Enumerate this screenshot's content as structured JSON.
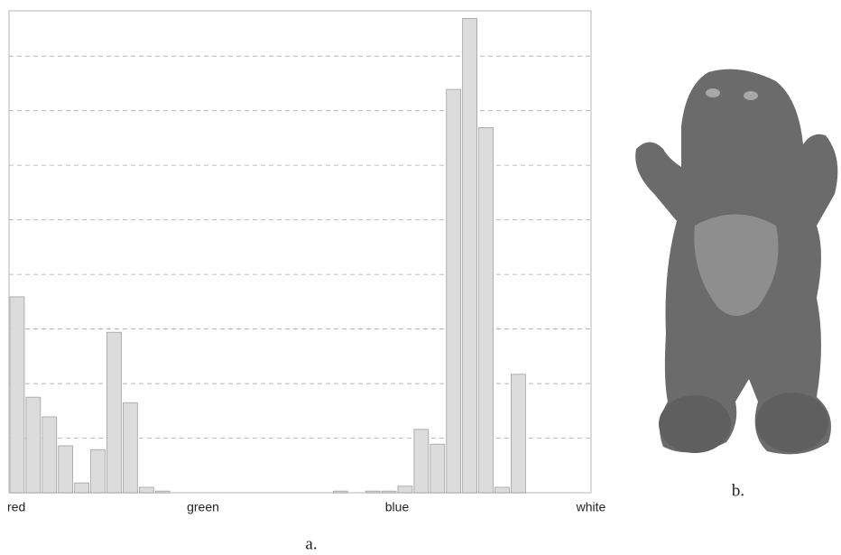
{
  "chart_data": {
    "type": "histogram",
    "bins": [
      0,
      1,
      2,
      3,
      4,
      5,
      6,
      7,
      8,
      9,
      10,
      11,
      12,
      13,
      14,
      15,
      16,
      17,
      18,
      19,
      20,
      21,
      22,
      23,
      24,
      25,
      26,
      27,
      28,
      29,
      30,
      31,
      32,
      33,
      34,
      35,
      36
    ],
    "values": [
      3.59,
      1.75,
      1.39,
      0.86,
      0.18,
      0.79,
      2.94,
      1.65,
      0.1,
      0.03,
      0,
      0,
      0,
      0,
      0,
      0,
      0,
      0,
      0,
      0,
      0.03,
      0,
      0.03,
      0.03,
      0.12,
      1.16,
      0.89,
      7.39,
      8.69,
      6.69,
      0.1,
      2.17,
      0,
      0,
      0,
      0
    ],
    "color": "#dcdcdc",
    "xlim": [
      0,
      36
    ],
    "xticks": [
      {
        "value": 0,
        "label": "red"
      },
      {
        "value": 12,
        "label": "green"
      },
      {
        "value": 24,
        "label": "blue"
      },
      {
        "value": 36,
        "label": "white"
      }
    ],
    "ylim": [
      0,
      8.83
    ],
    "yticks": [
      1,
      2,
      3,
      4,
      5,
      6,
      7,
      8
    ],
    "ytick_labels": false,
    "grid": true
  },
  "figure": {
    "caption_a": "a.",
    "caption_b": "b."
  }
}
